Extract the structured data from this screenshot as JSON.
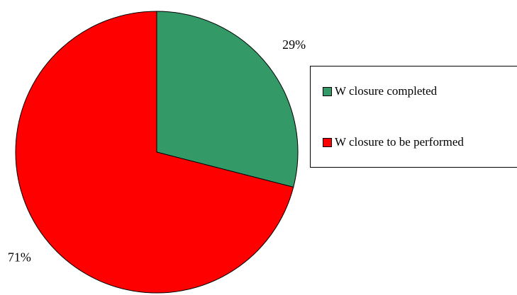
{
  "chart_data": {
    "type": "pie",
    "categories": [
      "W closure completed",
      "W closure to be performed"
    ],
    "values": [
      29,
      71
    ],
    "value_labels": [
      "29%",
      "71%"
    ],
    "colors": [
      "#339966",
      "#ff0000"
    ],
    "legend": "right"
  }
}
